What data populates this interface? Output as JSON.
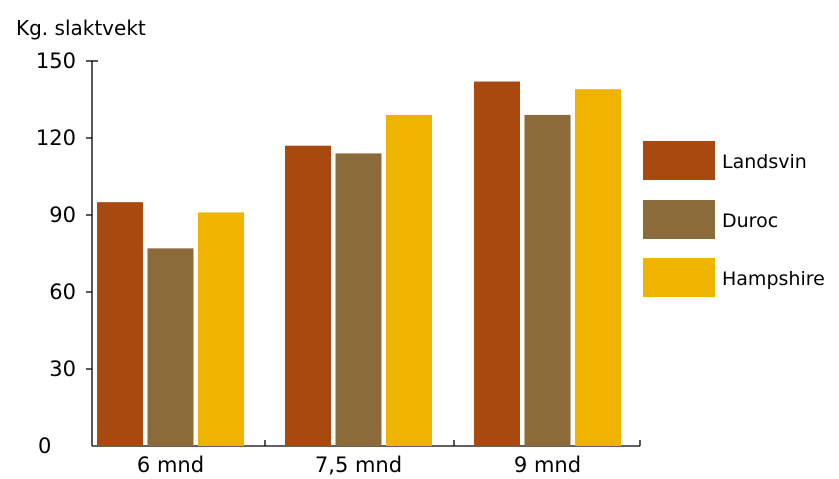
{
  "chart_data": {
    "type": "bar",
    "title": "",
    "ylabel": "Kg. slaktvekt",
    "xlabel": "",
    "categories": [
      "6 mnd",
      "7,5 mnd",
      "9 mnd"
    ],
    "series": [
      {
        "name": "Landsvin",
        "color": "#A84A0F",
        "values": [
          95,
          117,
          142
        ]
      },
      {
        "name": "Duroc",
        "color": "#8B6B3A",
        "values": [
          77,
          114,
          129
        ]
      },
      {
        "name": "Hampshire",
        "color": "#F0B400",
        "values": [
          91,
          129,
          139
        ]
      }
    ],
    "yticks": [
      "0",
      "30",
      "60",
      "90",
      "120",
      "150"
    ],
    "ylim": [
      0,
      150
    ],
    "grid": false,
    "legend_position": "right"
  }
}
